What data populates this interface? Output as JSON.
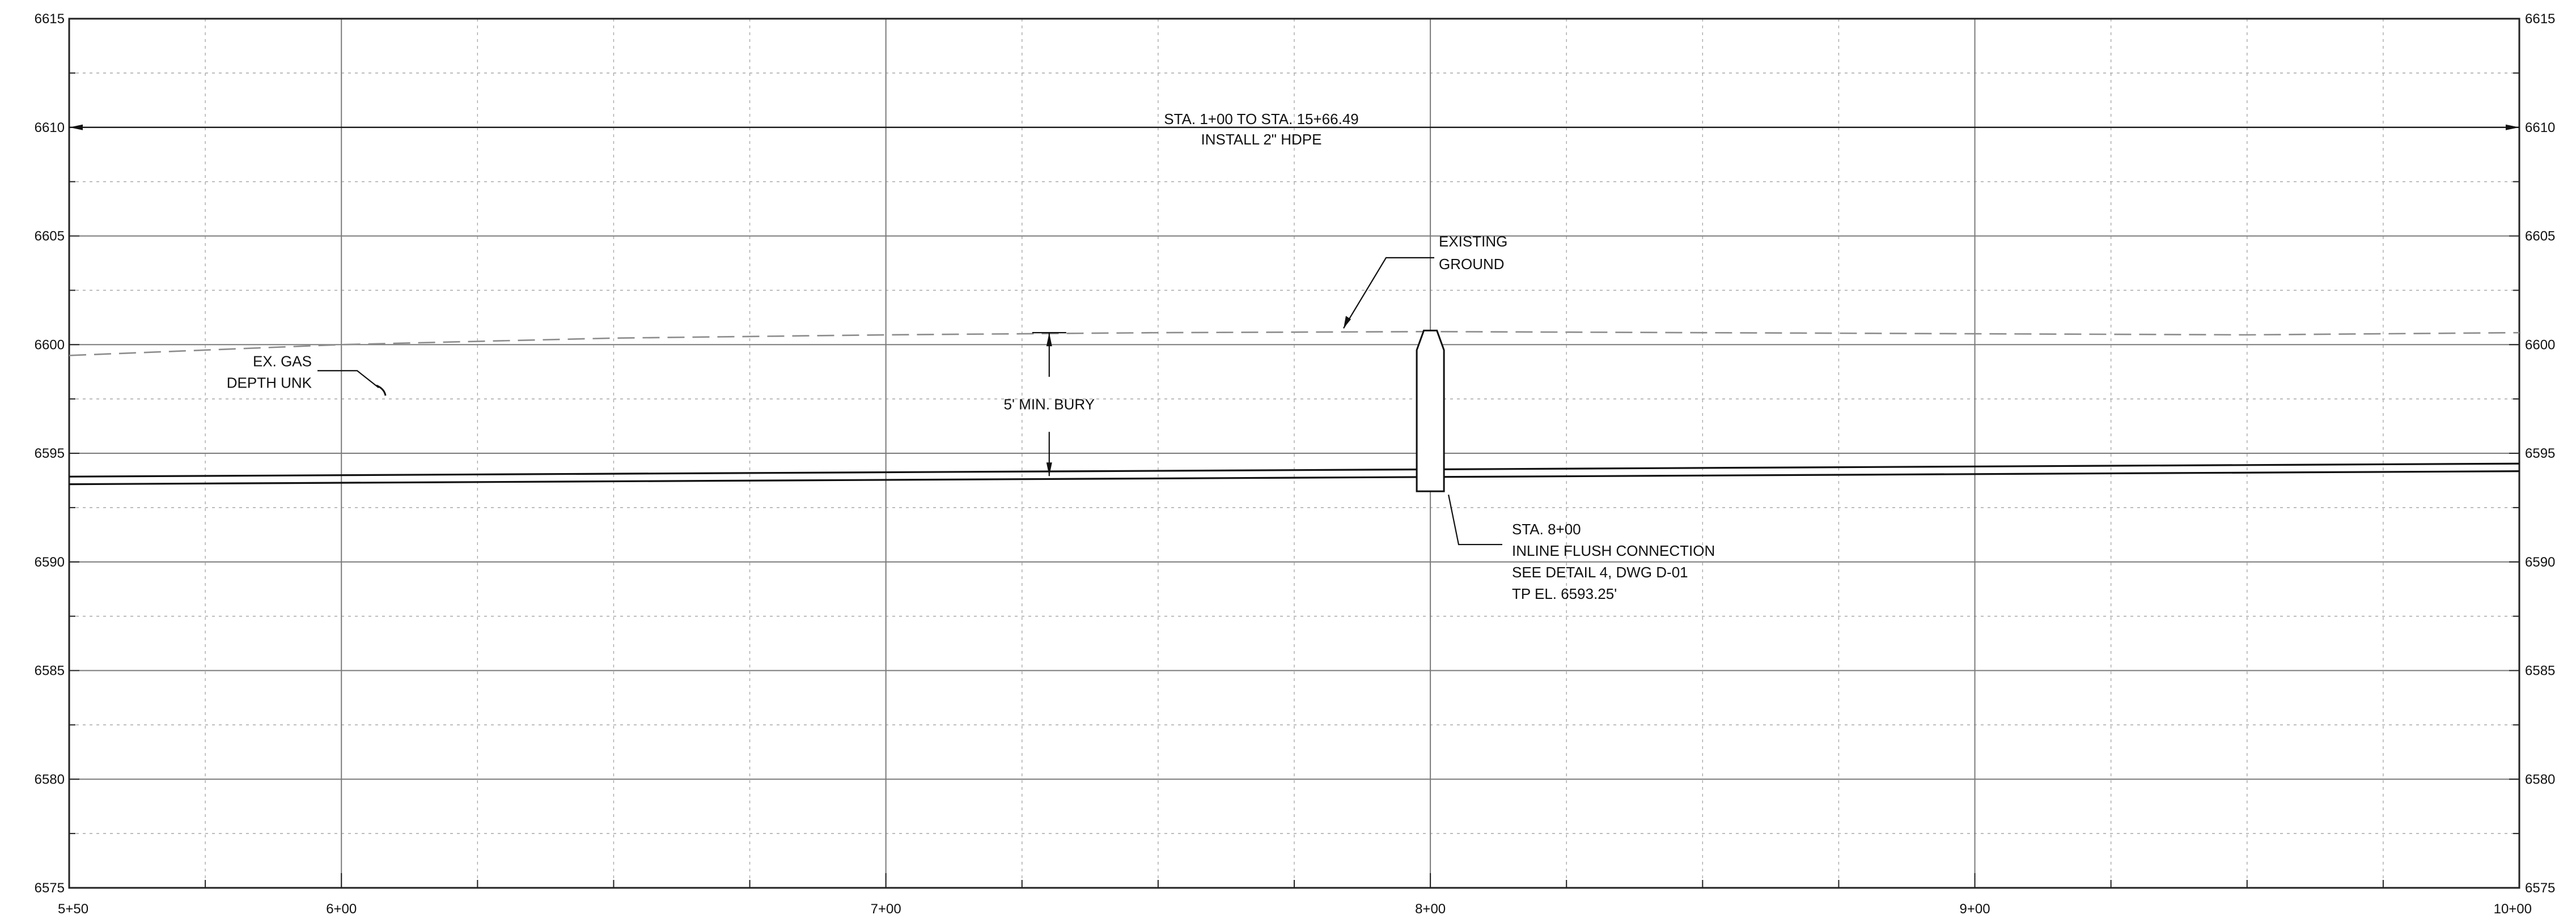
{
  "drawing": {
    "type": "profile",
    "stations": [
      {
        "sta": 550,
        "label": "5+50"
      },
      {
        "sta": 600,
        "label": "6+00"
      },
      {
        "sta": 700,
        "label": "7+00"
      },
      {
        "sta": 800,
        "label": "8+00"
      },
      {
        "sta": 900,
        "label": "9+00"
      },
      {
        "sta": 1000,
        "label": "10+00"
      }
    ],
    "elevations": [
      6575,
      6580,
      6585,
      6590,
      6595,
      6600,
      6605,
      6610,
      6615
    ],
    "elevation_labels": [
      "6575",
      "6580",
      "6585",
      "6590",
      "6595",
      "6600",
      "6605",
      "6610",
      "6615"
    ],
    "x_range": [
      550,
      1000
    ],
    "y_range": [
      6575,
      6615
    ],
    "grid": true,
    "colors": {
      "linework": "#111111",
      "grid_major": "#7a7a7a",
      "grid_minor": "#a8a8a8",
      "existing_ground": "#8c8c8c"
    },
    "existing_ground": [
      {
        "sta": 550,
        "el": 6599.5
      },
      {
        "sta": 600,
        "el": 6600.0
      },
      {
        "sta": 650,
        "el": 6600.3
      },
      {
        "sta": 700,
        "el": 6600.45
      },
      {
        "sta": 750,
        "el": 6600.55
      },
      {
        "sta": 800,
        "el": 6600.6
      },
      {
        "sta": 850,
        "el": 6600.55
      },
      {
        "sta": 900,
        "el": 6600.5
      },
      {
        "sta": 950,
        "el": 6600.45
      },
      {
        "sta": 1000,
        "el": 6600.55
      }
    ],
    "pipe": {
      "start": {
        "sta": 550,
        "el": 6593.75
      },
      "end": {
        "sta": 1000,
        "el": 6594.35
      },
      "wall_thickness_ft": 0.35
    },
    "flush_connection": {
      "sta": 800,
      "bottom_el": 6593.25,
      "top_el": 6600.65,
      "bottom_half_width_sta": 2.5,
      "top_half_width_sta": 1.2
    },
    "bury_dimension": {
      "sta": 730,
      "top_el": 6600.55,
      "bottom_el": 6593.95
    },
    "annotations": {
      "range_line1": "STA. 1+00 TO STA. 15+66.49",
      "range_line2": "INSTALL 2\" HDPE",
      "existing_ground_line1": "EXISTING",
      "existing_ground_line2": "GROUND",
      "gas_line1": "EX. GAS",
      "gas_line2": "DEPTH UNK",
      "bury": "5' MIN. BURY",
      "connection_line1": "STA. 8+00",
      "connection_line2": "INLINE FLUSH CONNECTION",
      "connection_line3": "SEE DETAIL 4, DWG D-01",
      "connection_line4": "TP EL. 6593.25'"
    }
  }
}
